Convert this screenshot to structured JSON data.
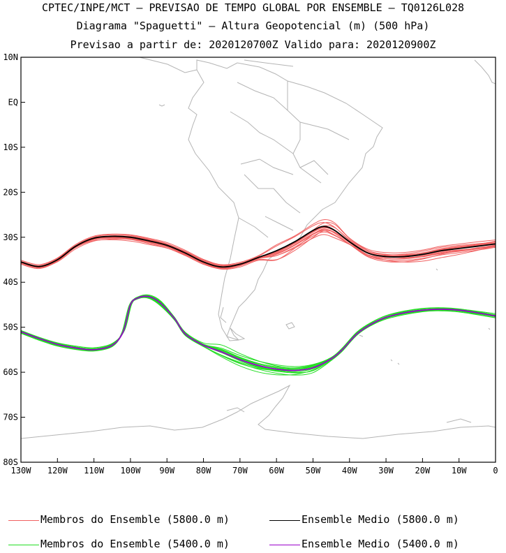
{
  "title": {
    "line1": "CPTEC/INPE/MCT — PREVISAO DE TEMPO GLOBAL POR ENSEMBLE — TQ0126L028",
    "line2": "Diagrama \"Spaguetti\" — Altura Geopotencial (m) (500 hPa)",
    "line3": "Previsao a partir de: 2020120700Z  Valido para: 2020120900Z"
  },
  "axes": {
    "lat_ticks": [
      "10N",
      "EQ",
      "10S",
      "20S",
      "30S",
      "40S",
      "50S",
      "60S",
      "70S",
      "80S"
    ],
    "lon_ticks": [
      "130W",
      "120W",
      "110W",
      "100W",
      "90W",
      "80W",
      "70W",
      "60W",
      "50W",
      "40W",
      "30W",
      "20W",
      "10W",
      "0"
    ]
  },
  "legend": [
    {
      "label": "Membros do Ensemble (5800.0 m)",
      "color": "#f06060"
    },
    {
      "label": "Ensemble Medio (5800.0 m)",
      "color": "#000000"
    },
    {
      "label": "Membros do Ensemble (5400.0 m)",
      "color": "#22dd22"
    },
    {
      "label": "Ensemble Medio (5400.0 m)",
      "color": "#9900cc"
    }
  ],
  "colors": {
    "coastline": "#b4b4b4",
    "frame": "#000000"
  },
  "contours": {
    "c5800_mean": [
      [
        -130,
        -35.5
      ],
      [
        -125,
        -36.5
      ],
      [
        -120,
        -35
      ],
      [
        -115,
        -32
      ],
      [
        -110,
        -30.2
      ],
      [
        -105,
        -29.8
      ],
      [
        -100,
        -30
      ],
      [
        -95,
        -30.8
      ],
      [
        -90,
        -31.8
      ],
      [
        -85,
        -33.5
      ],
      [
        -80,
        -35.5
      ],
      [
        -75,
        -36.6
      ],
      [
        -70,
        -36
      ],
      [
        -65,
        -34.5
      ],
      [
        -60,
        -33
      ],
      [
        -55,
        -31
      ],
      [
        -50,
        -28.5
      ],
      [
        -47,
        -27.6
      ],
      [
        -44,
        -28.5
      ],
      [
        -40,
        -31
      ],
      [
        -35,
        -33.5
      ],
      [
        -30,
        -34.3
      ],
      [
        -25,
        -34.3
      ],
      [
        -20,
        -33.8
      ],
      [
        -15,
        -33
      ],
      [
        -10,
        -32.5
      ],
      [
        -5,
        -32
      ],
      [
        0,
        -31.5
      ]
    ],
    "c5400_mean": [
      [
        -130,
        -51
      ],
      [
        -125,
        -52.5
      ],
      [
        -120,
        -53.8
      ],
      [
        -115,
        -54.6
      ],
      [
        -110,
        -55
      ],
      [
        -105,
        -54
      ],
      [
        -102,
        -51
      ],
      [
        -100,
        -45
      ],
      [
        -98,
        -43.5
      ],
      [
        -95,
        -43.2
      ],
      [
        -92,
        -44.5
      ],
      [
        -88,
        -48
      ],
      [
        -85,
        -51.5
      ],
      [
        -80,
        -54
      ],
      [
        -75,
        -55.5
      ],
      [
        -70,
        -57.2
      ],
      [
        -65,
        -58.5
      ],
      [
        -60,
        -59.3
      ],
      [
        -55,
        -59.6
      ],
      [
        -50,
        -59
      ],
      [
        -45,
        -57
      ],
      [
        -42,
        -55
      ],
      [
        -38,
        -51.5
      ],
      [
        -34,
        -49.3
      ],
      [
        -30,
        -47.8
      ],
      [
        -25,
        -46.8
      ],
      [
        -20,
        -46.2
      ],
      [
        -15,
        -46
      ],
      [
        -10,
        -46.2
      ],
      [
        -5,
        -46.8
      ],
      [
        0,
        -47.5
      ]
    ]
  }
}
